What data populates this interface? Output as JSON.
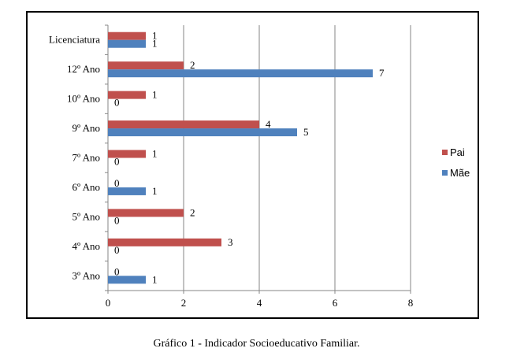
{
  "caption": "Gráfico 1 - Indicador Socioeducativo Familiar.",
  "chart_data": {
    "type": "bar",
    "orientation": "horizontal",
    "categories": [
      "Licenciatura",
      "12º Ano",
      "10º Ano",
      "9º Ano",
      "7º Ano",
      "6º Ano",
      "5º Ano",
      "4º Ano",
      "3º Ano"
    ],
    "series": [
      {
        "name": "Pai",
        "color": "#c0504d",
        "values": [
          1,
          2,
          1,
          4,
          1,
          0,
          2,
          3,
          0
        ]
      },
      {
        "name": "Mãe",
        "color": "#4f81bd",
        "values": [
          1,
          7,
          0,
          5,
          0,
          1,
          0,
          0,
          1
        ]
      }
    ],
    "xlim": [
      0,
      8
    ],
    "xticks": [
      0,
      2,
      4,
      6,
      8
    ],
    "grid": "vertical",
    "legend": "right",
    "title": "",
    "xlabel": "",
    "ylabel": ""
  }
}
